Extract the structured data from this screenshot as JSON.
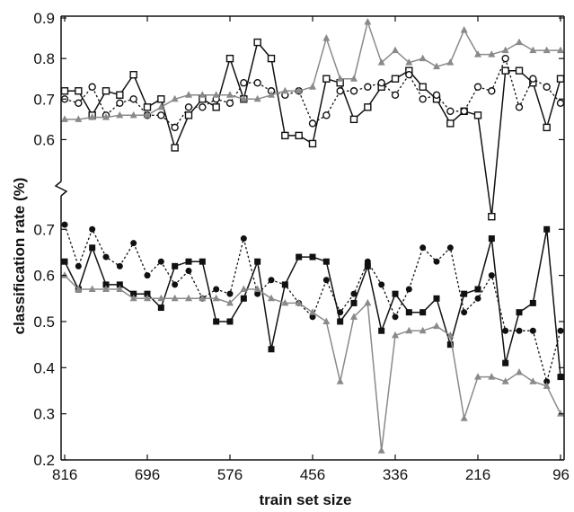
{
  "chart_data": {
    "type": "line",
    "xlabel": "train set size",
    "ylabel": "classification rate (%)",
    "x_reversed": true,
    "x_ticks": [
      816,
      696,
      576,
      456,
      336,
      216,
      96
    ],
    "xlim": [
      816,
      96
    ],
    "axis_break": true,
    "upper_panel": {
      "ylim": [
        0.55,
        0.9
      ],
      "y_ticks": [
        0.6,
        0.7,
        0.8,
        0.9
      ]
    },
    "lower_panel": {
      "ylim": [
        0.2,
        0.72
      ],
      "y_ticks": [
        0.2,
        0.3,
        0.4,
        0.5,
        0.6,
        0.7
      ]
    },
    "colors": {
      "black": "#111111",
      "gray": "#8a8a8a"
    },
    "x": [
      816,
      796,
      776,
      756,
      736,
      716,
      696,
      676,
      656,
      636,
      616,
      596,
      576,
      556,
      536,
      516,
      496,
      476,
      456,
      436,
      416,
      396,
      376,
      356,
      336,
      316,
      296,
      276,
      256,
      236,
      216,
      196,
      176,
      156,
      136,
      116,
      96
    ],
    "series": [
      {
        "panel": "upper",
        "color": "black",
        "line": "solid",
        "marker": "open-square",
        "values": [
          0.72,
          0.72,
          0.66,
          0.72,
          0.71,
          0.76,
          0.68,
          0.7,
          0.58,
          0.66,
          0.7,
          0.68,
          0.8,
          0.7,
          0.84,
          0.8,
          0.61,
          0.61,
          0.59,
          0.75,
          0.74,
          0.65,
          0.68,
          0.73,
          0.75,
          0.77,
          0.73,
          0.7,
          0.64,
          0.67,
          0.66,
          0.41,
          0.77,
          0.77,
          0.74,
          0.63,
          0.75
        ]
      },
      {
        "panel": "upper",
        "color": "black",
        "line": "dotted",
        "marker": "open-circle",
        "values": [
          0.7,
          0.69,
          0.73,
          0.66,
          0.69,
          0.7,
          0.66,
          0.66,
          0.63,
          0.68,
          0.68,
          0.7,
          0.69,
          0.74,
          0.74,
          0.72,
          0.71,
          0.72,
          0.64,
          0.66,
          0.72,
          0.72,
          0.73,
          0.74,
          0.71,
          0.76,
          0.7,
          0.71,
          0.67,
          0.67,
          0.73,
          0.72,
          0.8,
          0.68,
          0.75,
          0.73,
          0.69
        ]
      },
      {
        "panel": "upper",
        "color": "gray",
        "line": "solid",
        "marker": "triangle",
        "values": [
          0.65,
          0.65,
          0.655,
          0.655,
          0.66,
          0.66,
          0.66,
          0.68,
          0.7,
          0.71,
          0.71,
          0.71,
          0.71,
          0.7,
          0.7,
          0.71,
          0.72,
          0.72,
          0.73,
          0.85,
          0.75,
          0.75,
          0.89,
          0.79,
          0.82,
          0.79,
          0.8,
          0.78,
          0.79,
          0.87,
          0.81,
          0.81,
          0.82,
          0.84,
          0.82,
          0.82,
          0.82
        ]
      },
      {
        "panel": "lower",
        "color": "black",
        "line": "solid",
        "marker": "filled-square",
        "values": [
          0.63,
          0.57,
          0.66,
          0.58,
          0.58,
          0.56,
          0.56,
          0.53,
          0.62,
          0.63,
          0.63,
          0.5,
          0.5,
          0.55,
          0.63,
          0.44,
          0.58,
          0.64,
          0.64,
          0.63,
          0.5,
          0.54,
          0.62,
          0.48,
          0.56,
          0.52,
          0.52,
          0.55,
          0.45,
          0.56,
          0.57,
          0.68,
          0.41,
          0.52,
          0.54,
          0.7,
          0.38
        ]
      },
      {
        "panel": "lower",
        "color": "black",
        "line": "dotted",
        "marker": "filled-circle",
        "values": [
          0.71,
          0.62,
          0.7,
          0.64,
          0.62,
          0.67,
          0.6,
          0.63,
          0.58,
          0.61,
          0.55,
          0.57,
          0.56,
          0.68,
          0.56,
          0.59,
          0.58,
          0.54,
          0.51,
          0.59,
          0.52,
          0.56,
          0.63,
          0.58,
          0.51,
          0.57,
          0.66,
          0.63,
          0.66,
          0.52,
          0.55,
          0.6,
          0.48,
          0.48,
          0.48,
          0.37,
          0.48
        ]
      },
      {
        "panel": "lower",
        "color": "gray",
        "line": "solid",
        "marker": "triangle",
        "values": [
          0.6,
          0.57,
          0.57,
          0.57,
          0.57,
          0.55,
          0.55,
          0.55,
          0.55,
          0.55,
          0.55,
          0.55,
          0.54,
          0.57,
          0.57,
          0.55,
          0.54,
          0.54,
          0.52,
          0.5,
          0.37,
          0.51,
          0.54,
          0.22,
          0.47,
          0.48,
          0.48,
          0.49,
          0.47,
          0.29,
          0.38,
          0.38,
          0.37,
          0.39,
          0.37,
          0.36,
          0.3
        ]
      }
    ]
  }
}
